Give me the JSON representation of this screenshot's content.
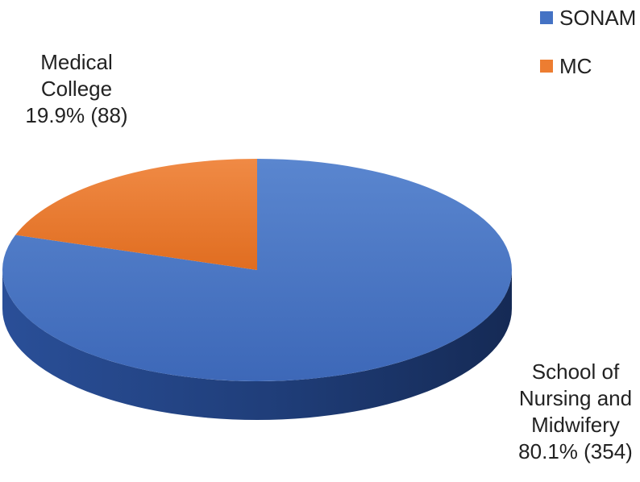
{
  "chart_data": {
    "type": "pie",
    "title": "",
    "slices": [
      {
        "name": "SONAM",
        "label_lines": [
          "School of",
          "Nursing and",
          "Midwifery",
          "80.1% (354)"
        ],
        "percent": 80.1,
        "count": 354,
        "color": "#4472C4"
      },
      {
        "name": "MC",
        "label_lines": [
          "Medical",
          "College",
          "19.9% (88)"
        ],
        "percent": 19.9,
        "count": 88,
        "color": "#ED7D31"
      }
    ],
    "legend": {
      "placement": "top-right",
      "items": [
        "SONAM",
        "MC"
      ]
    },
    "style": "3d"
  }
}
